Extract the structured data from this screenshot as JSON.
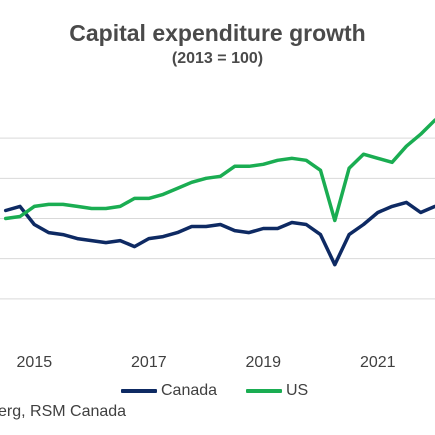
{
  "chart_data": {
    "type": "line",
    "title": "Capital expenditure growth",
    "subtitle": "(2013 = 100)",
    "x_ticks": [
      "2015",
      "2017",
      "2019",
      "2021"
    ],
    "x_range": [
      2014.4,
      2022.0
    ],
    "y_range": [
      40,
      160
    ],
    "gridlines": [
      60,
      80,
      100,
      120,
      140
    ],
    "grid": true,
    "legend_position": "bottom",
    "colors": {
      "Canada": "#0e2a63",
      "US": "#1aad52"
    },
    "x": [
      2014.5,
      2014.75,
      2015.0,
      2015.25,
      2015.5,
      2015.75,
      2016.0,
      2016.25,
      2016.5,
      2016.75,
      2017.0,
      2017.25,
      2017.5,
      2017.75,
      2018.0,
      2018.25,
      2018.5,
      2018.75,
      2019.0,
      2019.25,
      2019.5,
      2019.75,
      2020.0,
      2020.25,
      2020.5,
      2020.75,
      2021.0,
      2021.25,
      2021.5,
      2021.75,
      2022.0
    ],
    "series": [
      {
        "name": "Canada",
        "values": [
          104,
          106,
          97,
          93,
          92,
          90,
          89,
          88,
          89,
          86,
          90,
          91,
          93,
          96,
          96,
          97,
          94,
          93,
          95,
          95,
          98,
          97,
          92,
          77,
          92,
          97,
          103,
          106,
          108,
          103,
          106
        ]
      },
      {
        "name": "US",
        "values": [
          100,
          101,
          106,
          107,
          107,
          106,
          105,
          105,
          106,
          110,
          110,
          112,
          115,
          118,
          120,
          121,
          126,
          126,
          127,
          129,
          130,
          129,
          124,
          99,
          125,
          132,
          130,
          128,
          136,
          142,
          149
        ]
      }
    ]
  },
  "source_text": "erg, RSM Canada"
}
